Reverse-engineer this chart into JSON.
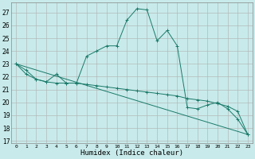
{
  "xlabel": "Humidex (Indice chaleur)",
  "ylabel": "",
  "background_color": "#c8eaea",
  "grid_color": "#b0b0b0",
  "line_color": "#1a7a6a",
  "xlim": [
    -0.5,
    23.5
  ],
  "ylim": [
    16.8,
    27.8
  ],
  "yticks": [
    17,
    18,
    19,
    20,
    21,
    22,
    23,
    24,
    25,
    26,
    27
  ],
  "xticks": [
    0,
    1,
    2,
    3,
    4,
    5,
    6,
    7,
    8,
    9,
    10,
    11,
    12,
    13,
    14,
    15,
    16,
    17,
    18,
    19,
    20,
    21,
    22,
    23
  ],
  "line1_x": [
    0,
    1,
    2,
    3,
    4,
    5,
    6,
    7,
    8,
    9,
    10,
    11,
    12,
    13,
    14,
    15,
    16,
    17,
    18,
    19,
    20,
    21,
    22,
    23
  ],
  "line1_y": [
    23.0,
    22.2,
    21.8,
    21.6,
    22.2,
    21.5,
    21.5,
    23.6,
    24.0,
    24.4,
    24.4,
    26.4,
    27.3,
    27.2,
    24.8,
    25.6,
    24.4,
    19.6,
    19.5,
    19.8,
    20.0,
    19.5,
    18.7,
    17.5
  ],
  "line2_x": [
    0,
    1,
    2,
    3,
    4,
    5,
    6,
    7,
    8,
    9,
    10,
    11,
    12,
    13,
    14,
    15,
    16,
    17,
    18,
    19,
    20,
    21,
    22,
    23
  ],
  "line2_y": [
    23.0,
    22.5,
    21.8,
    21.6,
    21.5,
    21.5,
    21.5,
    21.4,
    21.3,
    21.2,
    21.1,
    21.0,
    20.9,
    20.8,
    20.7,
    20.6,
    20.5,
    20.3,
    20.2,
    20.1,
    19.9,
    19.7,
    19.3,
    17.5
  ],
  "line3_x": [
    0,
    23
  ],
  "line3_y": [
    23.0,
    17.5
  ]
}
